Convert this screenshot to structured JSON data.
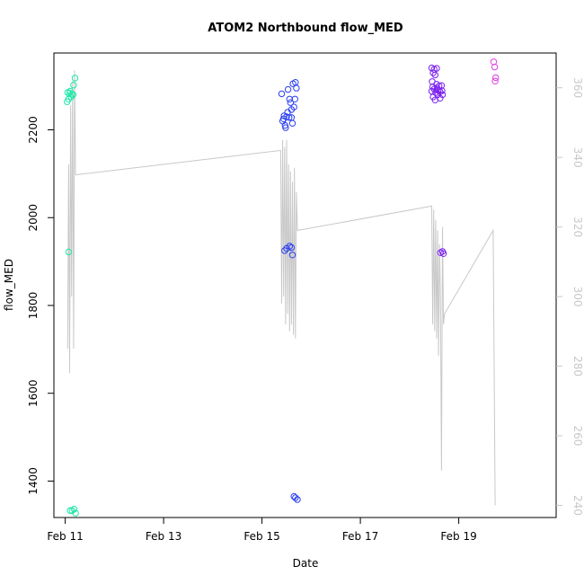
{
  "chart_data": {
    "type": "scatter",
    "title": "ATOM2 Northbound flow_MED",
    "xlabel": "Date",
    "ylabel": "flow_MED",
    "x_unit": "days of February",
    "xlim": [
      10.77,
      20.98
    ],
    "ylim": [
      1317,
      2375
    ],
    "x_ticks": [
      {
        "value": 11,
        "label": "Feb 11"
      },
      {
        "value": 13,
        "label": "Feb 13"
      },
      {
        "value": 15,
        "label": "Feb 15"
      },
      {
        "value": 17,
        "label": "Feb 17"
      },
      {
        "value": 19,
        "label": "Feb 19"
      }
    ],
    "y_ticks": [
      1400,
      1600,
      1800,
      2000,
      2200
    ],
    "y2_ticks": [
      240,
      260,
      280,
      300,
      320,
      340,
      360
    ],
    "y2lim": [
      236.5,
      370
    ],
    "grid": false,
    "legend": "none",
    "colors": {
      "cluster1": "#1fe6a8",
      "cluster2": "#2a3ff0",
      "cluster3": "#7a1ff0",
      "cluster4": "#e040e8",
      "line": "#c8c8c8",
      "right_axis": "#c8c8c8"
    },
    "series": [
      {
        "color": "cluster1",
        "points": [
          [
            11.05,
            2285
          ],
          [
            11.09,
            2284
          ],
          [
            11.13,
            2281
          ],
          [
            11.17,
            2302
          ],
          [
            11.2,
            2318
          ],
          [
            11.07,
            2270
          ],
          [
            11.12,
            2275
          ],
          [
            11.16,
            2280
          ],
          [
            11.04,
            2264
          ],
          [
            11.1,
            2288
          ],
          [
            11.07,
            1922
          ],
          [
            11.1,
            1333
          ],
          [
            11.14,
            1333
          ],
          [
            11.18,
            1336
          ],
          [
            11.21,
            1327
          ]
        ]
      },
      {
        "color": "cluster2",
        "points": [
          [
            15.4,
            2282
          ],
          [
            15.45,
            2232
          ],
          [
            15.5,
            2230
          ],
          [
            15.55,
            2228
          ],
          [
            15.42,
            2220
          ],
          [
            15.48,
            2205
          ],
          [
            15.52,
            2240
          ],
          [
            15.58,
            2262
          ],
          [
            15.6,
            2246
          ],
          [
            15.62,
            2215
          ],
          [
            15.65,
            2252
          ],
          [
            15.67,
            2270
          ],
          [
            15.7,
            2295
          ],
          [
            15.63,
            2305
          ],
          [
            15.68,
            2308
          ],
          [
            15.56,
            2270
          ],
          [
            15.44,
            2225
          ],
          [
            15.53,
            2292
          ],
          [
            15.6,
            2228
          ],
          [
            15.47,
            2210
          ],
          [
            15.46,
            1925
          ],
          [
            15.5,
            1930
          ],
          [
            15.56,
            1935
          ],
          [
            15.6,
            1932
          ],
          [
            15.62,
            1915
          ],
          [
            15.65,
            1365
          ],
          [
            15.68,
            1362
          ],
          [
            15.72,
            1358
          ]
        ]
      },
      {
        "color": "cluster3",
        "points": [
          [
            18.45,
            2341
          ],
          [
            18.5,
            2338
          ],
          [
            18.55,
            2340
          ],
          [
            18.48,
            2330
          ],
          [
            18.52,
            2325
          ],
          [
            18.46,
            2310
          ],
          [
            18.55,
            2304
          ],
          [
            18.6,
            2300
          ],
          [
            18.65,
            2301
          ],
          [
            18.5,
            2293
          ],
          [
            18.53,
            2285
          ],
          [
            18.58,
            2290
          ],
          [
            18.62,
            2287
          ],
          [
            18.67,
            2280
          ],
          [
            18.45,
            2288
          ],
          [
            18.48,
            2275
          ],
          [
            18.52,
            2268
          ],
          [
            18.57,
            2280
          ],
          [
            18.62,
            2272
          ],
          [
            18.66,
            2289
          ],
          [
            18.47,
            2298
          ],
          [
            18.56,
            2295
          ],
          [
            18.63,
            1920
          ],
          [
            18.67,
            1923
          ],
          [
            18.69,
            1918
          ]
        ]
      },
      {
        "color": "cluster4",
        "points": [
          [
            19.71,
            2355
          ],
          [
            19.73,
            2343
          ],
          [
            19.75,
            2319
          ],
          [
            19.74,
            2311
          ]
        ]
      }
    ],
    "line_series": {
      "color": "line",
      "axis": "right",
      "x": [
        11.05,
        11.07,
        11.09,
        11.11,
        11.13,
        11.15,
        11.17,
        11.19,
        11.21,
        11.23,
        15.38,
        15.4,
        15.42,
        15.44,
        15.46,
        15.48,
        15.5,
        15.52,
        15.54,
        15.56,
        15.58,
        15.6,
        15.62,
        15.64,
        15.66,
        15.68,
        15.7,
        15.72,
        18.45,
        18.47,
        18.49,
        18.51,
        18.53,
        18.55,
        18.57,
        18.59,
        18.61,
        18.63,
        18.65,
        18.67,
        18.69,
        18.71,
        19.7,
        19.74
      ],
      "y": [
        285,
        338,
        278,
        355,
        300,
        362,
        285,
        365,
        335,
        335,
        342,
        298,
        345,
        300,
        343,
        292,
        345,
        295,
        338,
        290,
        336,
        292,
        333,
        289,
        337,
        288,
        330,
        319,
        326,
        292,
        325,
        290,
        322,
        288,
        319,
        283,
        315,
        298,
        250,
        320,
        292,
        295,
        319,
        240
      ]
    }
  }
}
